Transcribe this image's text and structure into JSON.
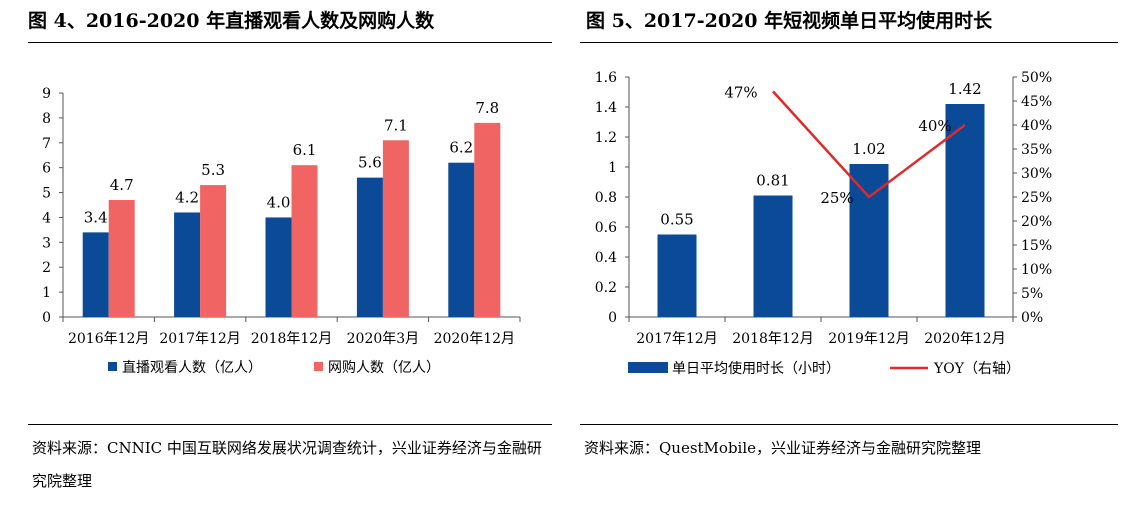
{
  "left_panel": {
    "title": "图 4、2016-2020 年直播观看人数及网购人数",
    "source": "资料来源：CNNIC 中国互联网络发展状况调查统计，兴业证券经济与金融研究院整理"
  },
  "right_panel": {
    "title": "图 5、2017-2020 年短视频单日平均使用时长",
    "source": "资料来源：QuestMobile，兴业证券经济与金融研究院整理"
  },
  "chart_data": [
    {
      "type": "bar",
      "categories": [
        "2016年12月",
        "2017年12月",
        "2018年12月",
        "2020年3月",
        "2020年12月"
      ],
      "series": [
        {
          "name": "直播观看人数（亿人）",
          "values": [
            3.4,
            4.2,
            4.0,
            5.6,
            6.2
          ],
          "labels": [
            "3.4",
            "4.2",
            "4.0",
            "5.6",
            "6.2"
          ],
          "color": "#0b4a96"
        },
        {
          "name": "网购人数（亿人）",
          "values": [
            4.7,
            5.3,
            6.1,
            7.1,
            7.8
          ],
          "labels": [
            "4.7",
            "5.3",
            "6.1",
            "7.1",
            "7.8"
          ],
          "color": "#f06464"
        }
      ],
      "ylim": [
        0,
        9
      ],
      "yticks": [
        "0",
        "1",
        "2",
        "3",
        "4",
        "5",
        "6",
        "7",
        "8",
        "9"
      ],
      "grid": false,
      "legend_position": "bottom"
    },
    {
      "type": "bar+line",
      "categories": [
        "2017年12月",
        "2018年12月",
        "2019年12月",
        "2020年12月"
      ],
      "bar_series": {
        "name": "单日平均使用时长（小时）",
        "values": [
          0.55,
          0.81,
          1.02,
          1.42
        ],
        "labels": [
          "0.55",
          "0.81",
          "1.02",
          "1.42"
        ],
        "color": "#0b4a96"
      },
      "line_series": {
        "name": "YOY（右轴）",
        "x": [
          "2018年12月",
          "2019年12月",
          "2020年12月"
        ],
        "values": [
          0.47,
          0.25,
          0.4
        ],
        "labels": [
          "47%",
          "25%",
          "40%"
        ],
        "color": "#e0292b"
      },
      "ylim": [
        0,
        1.6
      ],
      "yticks": [
        "0",
        "0.2",
        "0.4",
        "0.6",
        "0.8",
        "1",
        "1.2",
        "1.4",
        "1.6"
      ],
      "y2lim": [
        0,
        0.5
      ],
      "y2ticks": [
        "0%",
        "5%",
        "10%",
        "15%",
        "20%",
        "25%",
        "30%",
        "35%",
        "40%",
        "45%",
        "50%"
      ],
      "grid": false,
      "legend_position": "bottom"
    }
  ]
}
